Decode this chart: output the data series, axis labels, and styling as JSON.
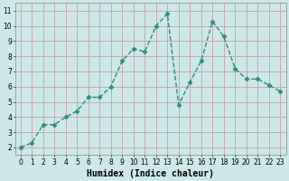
{
  "x": [
    0,
    1,
    2,
    3,
    4,
    5,
    6,
    7,
    8,
    9,
    10,
    11,
    12,
    13,
    14,
    15,
    16,
    17,
    18,
    19,
    20,
    21,
    22,
    23
  ],
  "y": [
    2.0,
    2.3,
    3.5,
    3.5,
    4.0,
    4.4,
    5.3,
    5.3,
    6.0,
    7.7,
    8.5,
    8.3,
    10.0,
    10.8,
    4.8,
    6.3,
    7.7,
    10.3,
    9.3,
    7.2,
    6.5,
    6.5,
    6.1,
    5.7
  ],
  "line_color": "#2e8b7a",
  "marker": "D",
  "marker_size": 2.5,
  "bg_color": "#cce8e8",
  "grid_color_h": "#c8a0a0",
  "grid_color_v": "#c8a0a0",
  "xlabel": "Humidex (Indice chaleur)",
  "xlim": [
    -0.5,
    23.5
  ],
  "ylim": [
    1.5,
    11.5
  ],
  "yticks": [
    2,
    3,
    4,
    5,
    6,
    7,
    8,
    9,
    10,
    11
  ],
  "xticks": [
    0,
    1,
    2,
    3,
    4,
    5,
    6,
    7,
    8,
    9,
    10,
    11,
    12,
    13,
    14,
    15,
    16,
    17,
    18,
    19,
    20,
    21,
    22,
    23
  ],
  "tick_fontsize": 5.5,
  "xlabel_fontsize": 7.0,
  "line_width": 1.0
}
